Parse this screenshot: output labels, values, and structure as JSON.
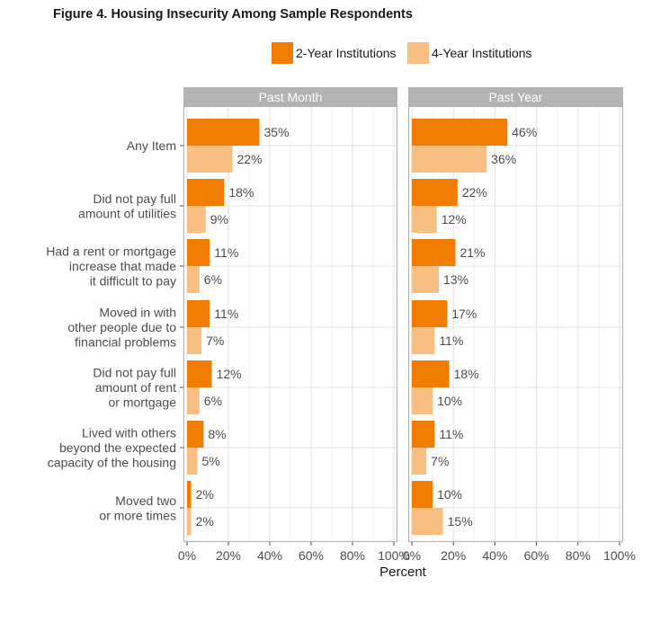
{
  "chart_data": {
    "type": "bar",
    "orientation": "horizontal",
    "title": "Figure 4. Housing Insecurity Among Sample Respondents",
    "xlabel": "Percent",
    "ylabel": "",
    "xlim": [
      0,
      100
    ],
    "xticks": [
      "0%",
      "20%",
      "40%",
      "60%",
      "80%",
      "100%"
    ],
    "legend_position": "top",
    "series_names": [
      "2-Year Institutions",
      "4-Year Institutions"
    ],
    "series_colors": [
      "#f27c00",
      "#f9bf82"
    ],
    "categories": [
      [
        "Any Item"
      ],
      [
        "Did not pay full",
        "amount of utilities"
      ],
      [
        "Had a rent or mortgage",
        "increase that made",
        "it difficult to pay"
      ],
      [
        "Moved in with",
        "other people due to",
        "financial problems"
      ],
      [
        "Did not pay full",
        "amount of rent",
        "or mortgage"
      ],
      [
        "Lived with others",
        "beyond the expected",
        "capacity of the housing"
      ],
      [
        "Moved two",
        "or more times"
      ]
    ],
    "panels": [
      {
        "title": "Past Month",
        "series": [
          {
            "name": "2-Year Institutions",
            "values": [
              35,
              18,
              11,
              11,
              12,
              8,
              2
            ]
          },
          {
            "name": "4-Year Institutions",
            "values": [
              22,
              9,
              6,
              7,
              6,
              5,
              2
            ]
          }
        ]
      },
      {
        "title": "Past Year",
        "series": [
          {
            "name": "2-Year Institutions",
            "values": [
              46,
              22,
              21,
              17,
              18,
              11,
              10
            ]
          },
          {
            "name": "4-Year Institutions",
            "values": [
              36,
              12,
              13,
              11,
              10,
              7,
              15
            ]
          }
        ]
      }
    ]
  }
}
